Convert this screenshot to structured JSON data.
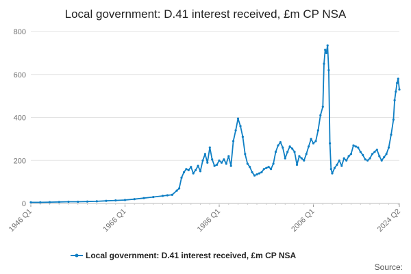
{
  "chart_data": {
    "type": "line",
    "title": "Local government: D.41 interest received, £m CP NSA",
    "xlabel": "",
    "ylabel": "",
    "x_tick_labels": [
      "1946 Q1",
      "1966 Q1",
      "1986 Q1",
      "2006 Q1",
      "2024 Q2"
    ],
    "x_range": [
      1946.0,
      2024.25
    ],
    "y_ticks": [
      0,
      200,
      400,
      600,
      800
    ],
    "ylim": [
      0,
      800
    ],
    "grid": true,
    "legend_position": "bottom",
    "series": [
      {
        "name": "Local government: D.41 interest received, £m CP NSA",
        "color": "#0f7fc4",
        "points": [
          [
            1946.0,
            5
          ],
          [
            1948.0,
            5
          ],
          [
            1950.0,
            6
          ],
          [
            1952.0,
            7
          ],
          [
            1954.0,
            8
          ],
          [
            1956.0,
            8
          ],
          [
            1958.0,
            9
          ],
          [
            1960.0,
            10
          ],
          [
            1962.0,
            12
          ],
          [
            1964.0,
            14
          ],
          [
            1966.0,
            16
          ],
          [
            1968.0,
            20
          ],
          [
            1970.0,
            25
          ],
          [
            1972.0,
            30
          ],
          [
            1974.0,
            35
          ],
          [
            1975.0,
            38
          ],
          [
            1976.0,
            40
          ],
          [
            1977.0,
            60
          ],
          [
            1977.5,
            70
          ],
          [
            1978.0,
            120
          ],
          [
            1978.5,
            145
          ],
          [
            1979.0,
            160
          ],
          [
            1979.5,
            155
          ],
          [
            1980.0,
            170
          ],
          [
            1980.5,
            140
          ],
          [
            1981.0,
            155
          ],
          [
            1981.5,
            175
          ],
          [
            1982.0,
            150
          ],
          [
            1982.5,
            200
          ],
          [
            1983.0,
            230
          ],
          [
            1983.5,
            190
          ],
          [
            1984.0,
            260
          ],
          [
            1984.5,
            205
          ],
          [
            1985.0,
            175
          ],
          [
            1985.5,
            180
          ],
          [
            1986.0,
            200
          ],
          [
            1986.5,
            190
          ],
          [
            1987.0,
            205
          ],
          [
            1987.5,
            185
          ],
          [
            1988.0,
            220
          ],
          [
            1988.5,
            175
          ],
          [
            1989.0,
            290
          ],
          [
            1989.5,
            340
          ],
          [
            1990.0,
            395
          ],
          [
            1990.5,
            360
          ],
          [
            1991.0,
            310
          ],
          [
            1991.5,
            230
          ],
          [
            1992.0,
            185
          ],
          [
            1992.5,
            170
          ],
          [
            1993.0,
            145
          ],
          [
            1993.5,
            130
          ],
          [
            1994.0,
            135
          ],
          [
            1994.5,
            140
          ],
          [
            1995.0,
            145
          ],
          [
            1995.5,
            160
          ],
          [
            1996.0,
            165
          ],
          [
            1996.5,
            170
          ],
          [
            1997.0,
            160
          ],
          [
            1997.5,
            185
          ],
          [
            1998.0,
            240
          ],
          [
            1998.5,
            270
          ],
          [
            1999.0,
            285
          ],
          [
            1999.5,
            260
          ],
          [
            2000.0,
            210
          ],
          [
            2000.5,
            240
          ],
          [
            2001.0,
            265
          ],
          [
            2001.5,
            255
          ],
          [
            2002.0,
            240
          ],
          [
            2002.5,
            180
          ],
          [
            2003.0,
            220
          ],
          [
            2003.5,
            210
          ],
          [
            2004.0,
            200
          ],
          [
            2004.5,
            230
          ],
          [
            2005.0,
            265
          ],
          [
            2005.5,
            300
          ],
          [
            2006.0,
            280
          ],
          [
            2006.5,
            290
          ],
          [
            2007.0,
            340
          ],
          [
            2007.5,
            410
          ],
          [
            2008.0,
            450
          ],
          [
            2008.25,
            650
          ],
          [
            2008.5,
            715
          ],
          [
            2008.75,
            700
          ],
          [
            2009.0,
            735
          ],
          [
            2009.25,
            620
          ],
          [
            2009.5,
            280
          ],
          [
            2009.75,
            160
          ],
          [
            2010.0,
            140
          ],
          [
            2010.5,
            165
          ],
          [
            2011.0,
            180
          ],
          [
            2011.5,
            200
          ],
          [
            2012.0,
            175
          ],
          [
            2012.5,
            210
          ],
          [
            2013.0,
            200
          ],
          [
            2013.5,
            220
          ],
          [
            2014.0,
            230
          ],
          [
            2014.5,
            270
          ],
          [
            2015.0,
            265
          ],
          [
            2015.5,
            260
          ],
          [
            2016.0,
            240
          ],
          [
            2016.5,
            225
          ],
          [
            2017.0,
            205
          ],
          [
            2017.5,
            200
          ],
          [
            2018.0,
            210
          ],
          [
            2018.5,
            230
          ],
          [
            2019.0,
            240
          ],
          [
            2019.5,
            250
          ],
          [
            2020.0,
            220
          ],
          [
            2020.5,
            200
          ],
          [
            2021.0,
            215
          ],
          [
            2021.5,
            230
          ],
          [
            2022.0,
            260
          ],
          [
            2022.5,
            320
          ],
          [
            2023.0,
            390
          ],
          [
            2023.25,
            480
          ],
          [
            2023.5,
            520
          ],
          [
            2023.75,
            560
          ],
          [
            2024.0,
            580
          ],
          [
            2024.25,
            530
          ]
        ]
      }
    ],
    "source_label": "Source:"
  }
}
